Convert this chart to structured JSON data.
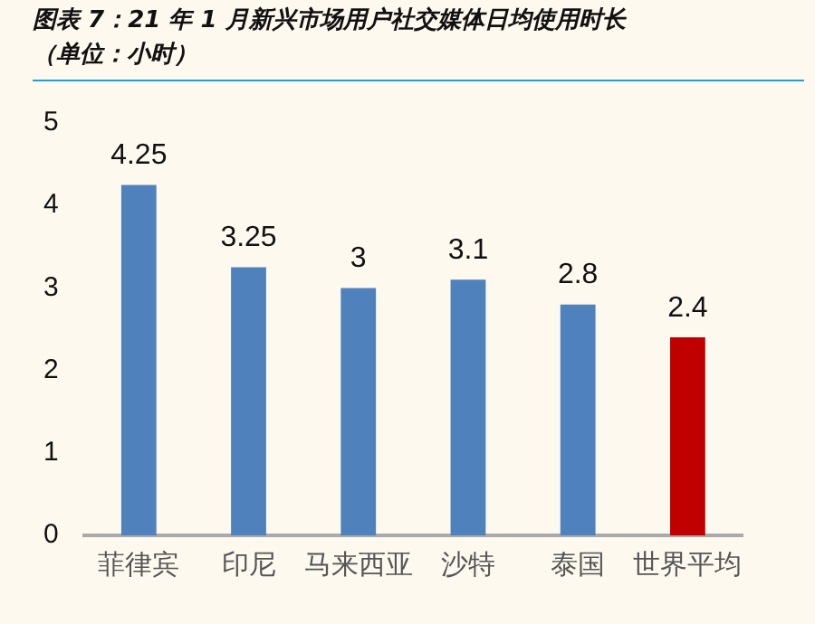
{
  "chart_data": {
    "type": "bar",
    "title": "图表 7：21 年 1 月新兴市场用户社交媒体日均使用时长",
    "subtitle": "（单位：小时）",
    "categories": [
      "菲律宾",
      "印尼",
      "马来西亚",
      "沙特",
      "泰国",
      "世界平均"
    ],
    "values": [
      4.25,
      3.25,
      3,
      3.1,
      2.8,
      2.4
    ],
    "colors": [
      "#4f81bd",
      "#4f81bd",
      "#4f81bd",
      "#4f81bd",
      "#4f81bd",
      "#c00000"
    ],
    "ylim": [
      0,
      5
    ],
    "yticks": [
      0,
      1,
      2,
      3,
      4,
      5
    ],
    "grid": false,
    "legend": false,
    "data_labels": true
  }
}
